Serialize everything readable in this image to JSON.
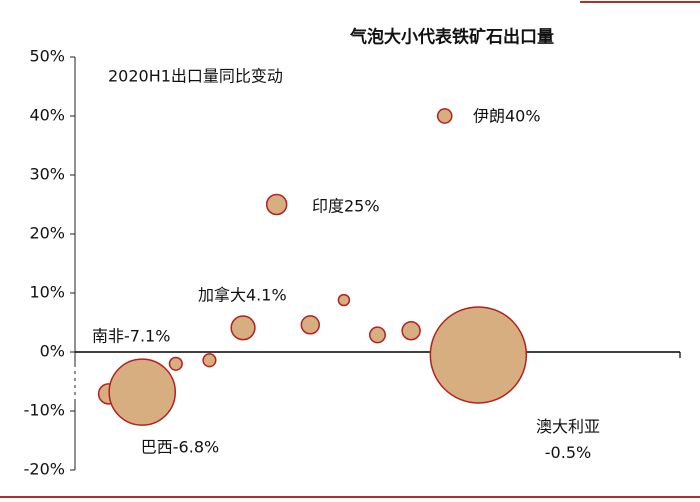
{
  "chart_data": {
    "type": "bubble",
    "title": "气泡大小代表铁矿石出口量",
    "subtitle": "2020H1出口量同比变动",
    "x": [
      1,
      2,
      3,
      4,
      5,
      6,
      7,
      8,
      9,
      10,
      11,
      12
    ],
    "values": [
      -7.1,
      -6.8,
      -2.0,
      -1.4,
      4.1,
      25,
      4.6,
      8.8,
      2.9,
      3.6,
      40,
      -0.5
    ],
    "sizes": [
      10,
      109,
      4,
      4,
      14,
      10,
      8,
      3,
      6,
      8,
      5,
      230
    ],
    "labels": [
      "南非-7.1%",
      "巴西-6.8%",
      null,
      null,
      "加拿大4.1%",
      "印度25%",
      null,
      null,
      null,
      null,
      "伊朗40%",
      "澳大利亚\n-0.5%"
    ],
    "color": "#d7ae80",
    "edge_color": "#b3201f",
    "xlim": [
      0,
      18
    ],
    "ylim": [
      -20,
      50
    ],
    "yticks": [
      {
        "value": -20,
        "label": "-20%"
      },
      {
        "value": -10,
        "label": "-10%"
      },
      {
        "value": 0,
        "label": "0%"
      },
      {
        "value": 10,
        "label": "10%"
      },
      {
        "value": 20,
        "label": "20%"
      },
      {
        "value": 30,
        "label": "30%"
      },
      {
        "value": 40,
        "label": "40%"
      },
      {
        "value": 50,
        "label": "50%"
      }
    ]
  }
}
